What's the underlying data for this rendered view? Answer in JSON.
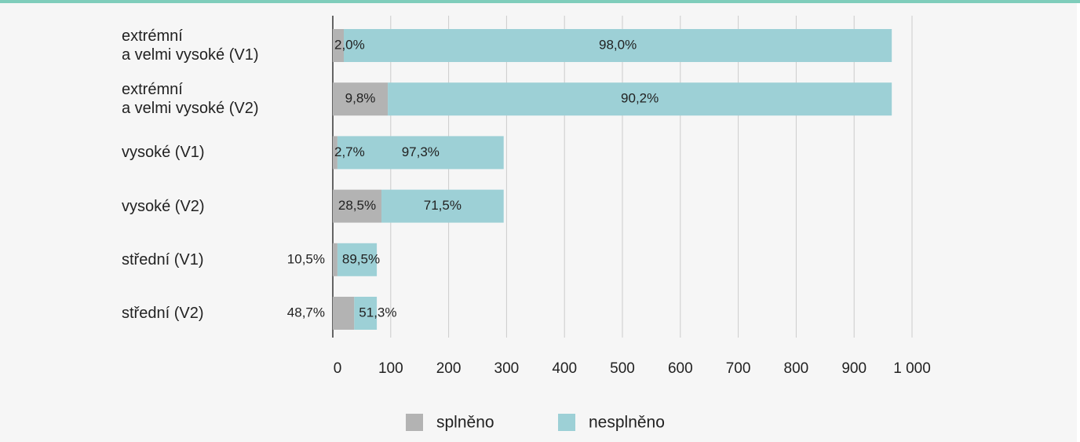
{
  "chart_data": {
    "type": "bar",
    "orientation": "horizontal",
    "stacked": true,
    "categories": [
      "extrémní\na velmi vysoké (V1)",
      "extrémní\na velmi vysoké (V2)",
      "vysoké (V1)",
      "vysoké (V2)",
      "střední (V1)",
      "střední (V2)"
    ],
    "series": [
      {
        "name": "splněno",
        "color": "#b3b3b3",
        "values": [
          19,
          95,
          8,
          84,
          8,
          37
        ],
        "labels": [
          "2,0%",
          "9,8%",
          "2,7%",
          "28,5%",
          "10,5%",
          "48,7%"
        ]
      },
      {
        "name": "nesplněno",
        "color": "#9dd0d6",
        "values": [
          946,
          870,
          287,
          211,
          68,
          39
        ],
        "labels": [
          "98,0%",
          "90,2%",
          "97,3%",
          "71,5%",
          "89,5%",
          "51,3%"
        ]
      }
    ],
    "xlim": [
      0,
      1000
    ],
    "xticks": [
      0,
      100,
      200,
      300,
      400,
      500,
      600,
      700,
      800,
      900,
      {
        "value": 1000,
        "label": "1 000"
      }
    ],
    "grid": true,
    "legend": "bottom"
  }
}
